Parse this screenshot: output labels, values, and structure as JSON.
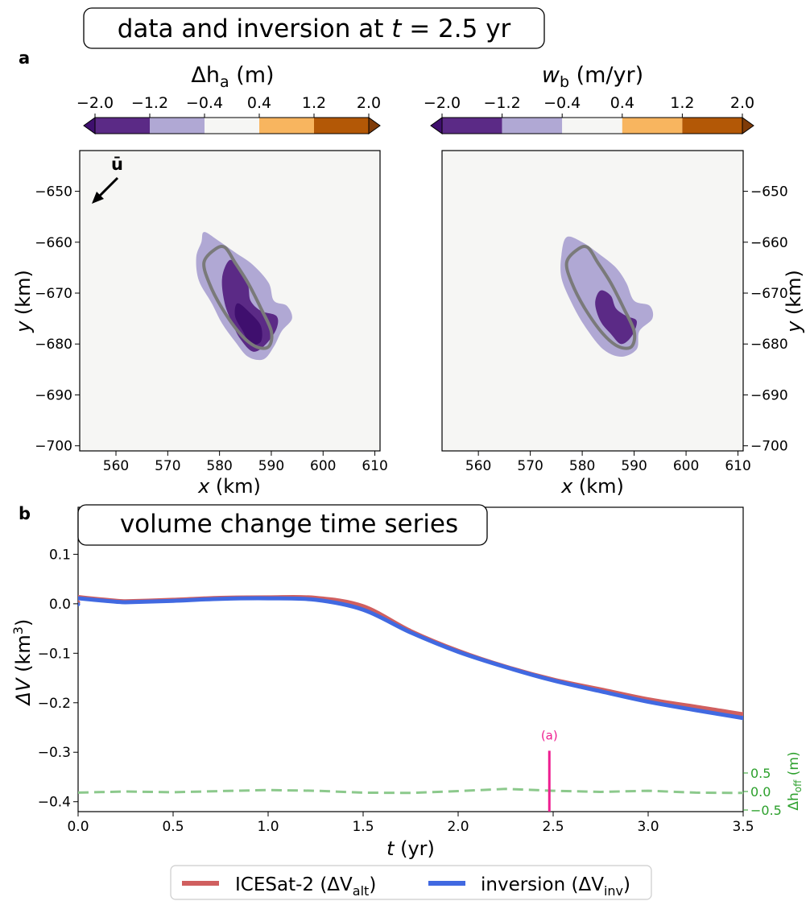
{
  "figure": {
    "title_a_prefix": "data and inversion at ",
    "title_a_t": "t",
    "title_a_suffix": " = 2.5 yr",
    "panel_a_label": "a",
    "panel_b_label": "b",
    "title_b": "volume change time series",
    "arrow_label": "ū"
  },
  "chart_data": [
    {
      "type": "heatmap",
      "panel": "a-left",
      "colorbar": {
        "label_sym": "Δh",
        "label_sub": "a",
        "label_unit": " (m)",
        "ticks": [
          "−2.0",
          "−1.2",
          "−0.4",
          "0.4",
          "1.2",
          "2.0"
        ],
        "levels": [
          -2.0,
          -1.2,
          -0.4,
          0.4,
          1.2,
          2.0
        ],
        "colors": [
          "#5b2a86",
          "#b0a8d4",
          "#f6f6f4",
          "#f8b55f",
          "#b35806"
        ],
        "under_color": "#3f0f6e",
        "over_color": "#7f3b08"
      },
      "xlabel_sym": "x",
      "xlabel_unit": " (km)",
      "ylabel_sym": "y",
      "ylabel_unit": " (km)",
      "xlim": [
        553,
        611
      ],
      "ylim": [
        -701,
        -642
      ],
      "xticks": [
        560,
        570,
        580,
        590,
        600,
        610
      ],
      "yticks": [
        -650,
        -660,
        -670,
        -680,
        -690,
        -700
      ],
      "xtick_labels": [
        "560",
        "570",
        "580",
        "590",
        "600",
        "610"
      ],
      "ytick_labels": [
        "−650",
        "−660",
        "−670",
        "−680",
        "−690",
        "−700"
      ],
      "contours": [
        {
          "level": "−1.2 to −0.4",
          "color": "#b0a8d4",
          "points": [
            [
              577.0,
              -658.0
            ],
            [
              579.5,
              -659.5
            ],
            [
              583.0,
              -662.0
            ],
            [
              586.5,
              -664.5
            ],
            [
              589.5,
              -668.0
            ],
            [
              590.5,
              -671.5
            ],
            [
              593.0,
              -672.5
            ],
            [
              594.0,
              -675.0
            ],
            [
              592.0,
              -677.5
            ],
            [
              590.5,
              -680.5
            ],
            [
              588.5,
              -683.0
            ],
            [
              585.5,
              -682.5
            ],
            [
              583.0,
              -679.5
            ],
            [
              580.5,
              -676.0
            ],
            [
              578.5,
              -672.0
            ],
            [
              576.0,
              -667.5
            ],
            [
              575.5,
              -663.0
            ],
            [
              576.5,
              -660.0
            ]
          ]
        },
        {
          "level": "−2.0 to −1.2",
          "color": "#5b2a86",
          "points": [
            [
              582.0,
              -663.5
            ],
            [
              584.0,
              -665.5
            ],
            [
              585.5,
              -668.5
            ],
            [
              586.0,
              -671.5
            ],
            [
              588.0,
              -673.5
            ],
            [
              591.0,
              -674.5
            ],
            [
              591.0,
              -677.0
            ],
            [
              589.0,
              -680.0
            ],
            [
              586.5,
              -681.5
            ],
            [
              584.0,
              -679.0
            ],
            [
              582.5,
              -676.0
            ],
            [
              581.0,
              -672.0
            ],
            [
              580.5,
              -667.0
            ]
          ]
        },
        {
          "level": "below −2.0",
          "color": "#3f0f6e",
          "points": [
            [
              583.5,
              -672.0
            ],
            [
              586.0,
              -674.0
            ],
            [
              588.0,
              -676.5
            ],
            [
              588.0,
              -679.5
            ],
            [
              586.0,
              -680.0
            ],
            [
              584.5,
              -677.5
            ],
            [
              583.0,
              -674.5
            ]
          ]
        }
      ],
      "outline_color": "#7a7a7a",
      "outline": [
        [
          579.0,
          -661.5
        ],
        [
          581.0,
          -661.0
        ],
        [
          583.0,
          -664.0
        ],
        [
          585.5,
          -668.0
        ],
        [
          588.0,
          -673.0
        ],
        [
          590.0,
          -677.5
        ],
        [
          589.5,
          -680.5
        ],
        [
          587.0,
          -680.5
        ],
        [
          584.0,
          -678.0
        ],
        [
          580.5,
          -673.0
        ],
        [
          578.0,
          -668.0
        ],
        [
          577.0,
          -664.0
        ]
      ]
    },
    {
      "type": "heatmap",
      "panel": "a-right",
      "colorbar": {
        "label_sym": "w",
        "label_sub": "b",
        "label_unit": " (m/yr)",
        "ticks": [
          "−2.0",
          "−1.2",
          "−0.4",
          "0.4",
          "1.2",
          "2.0"
        ],
        "levels": [
          -2.0,
          -1.2,
          -0.4,
          0.4,
          1.2,
          2.0
        ],
        "colors": [
          "#5b2a86",
          "#b0a8d4",
          "#f6f6f4",
          "#f8b55f",
          "#b35806"
        ],
        "under_color": "#3f0f6e",
        "over_color": "#7f3b08"
      },
      "xlabel_sym": "x",
      "xlabel_unit": " (km)",
      "ylabel_sym": "y",
      "ylabel_unit": " (km)",
      "xlim": [
        553,
        611
      ],
      "ylim": [
        -701,
        -642
      ],
      "xticks": [
        560,
        570,
        580,
        590,
        600,
        610
      ],
      "yticks": [
        -650,
        -660,
        -670,
        -680,
        -690,
        -700
      ],
      "xtick_labels": [
        "560",
        "570",
        "580",
        "590",
        "600",
        "610"
      ],
      "ytick_labels": [
        "−650",
        "−660",
        "−670",
        "−680",
        "−690",
        "−700"
      ],
      "contours": [
        {
          "level": "−1.2 to −0.4",
          "color": "#b0a8d4",
          "points": [
            [
              577.0,
              -659.0
            ],
            [
              580.0,
              -660.0
            ],
            [
              583.5,
              -662.5
            ],
            [
              586.5,
              -665.0
            ],
            [
              588.5,
              -668.0
            ],
            [
              590.0,
              -671.5
            ],
            [
              593.0,
              -672.5
            ],
            [
              593.5,
              -675.0
            ],
            [
              591.0,
              -677.5
            ],
            [
              590.5,
              -681.0
            ],
            [
              587.5,
              -682.5
            ],
            [
              584.0,
              -681.0
            ],
            [
              580.5,
              -676.5
            ],
            [
              578.0,
              -672.0
            ],
            [
              576.0,
              -667.0
            ],
            [
              576.0,
              -662.5
            ]
          ]
        },
        {
          "level": "−2.0 to −1.2",
          "color": "#5b2a86",
          "points": [
            [
              583.5,
              -669.5
            ],
            [
              585.5,
              -670.5
            ],
            [
              586.5,
              -673.0
            ],
            [
              588.5,
              -674.5
            ],
            [
              590.5,
              -675.5
            ],
            [
              589.5,
              -678.5
            ],
            [
              587.5,
              -680.0
            ],
            [
              585.5,
              -678.0
            ],
            [
              583.5,
              -675.5
            ],
            [
              582.5,
              -672.0
            ]
          ]
        }
      ],
      "outline_color": "#7a7a7a",
      "outline": [
        [
          579.0,
          -661.5
        ],
        [
          581.0,
          -661.0
        ],
        [
          583.0,
          -664.0
        ],
        [
          585.5,
          -668.0
        ],
        [
          588.0,
          -673.0
        ],
        [
          590.0,
          -677.5
        ],
        [
          589.5,
          -680.5
        ],
        [
          587.0,
          -680.5
        ],
        [
          584.0,
          -678.0
        ],
        [
          580.5,
          -673.0
        ],
        [
          578.0,
          -668.0
        ],
        [
          577.0,
          -664.0
        ]
      ]
    },
    {
      "type": "line",
      "panel": "b",
      "xlabel_sym": "t",
      "xlabel_unit": " (yr)",
      "ylabel_sym": "ΔV",
      "ylabel_unit_open": " (km",
      "ylabel_unit_sup": "3",
      "ylabel_unit_close": ")",
      "xlim": [
        0,
        3.5
      ],
      "ylim": [
        -0.42,
        0.195
      ],
      "xticks": [
        0.0,
        0.5,
        1.0,
        1.5,
        2.0,
        2.5,
        3.0,
        3.5
      ],
      "xtick_labels": [
        "0.0",
        "0.5",
        "1.0",
        "1.5",
        "2.0",
        "2.5",
        "3.0",
        "3.5"
      ],
      "yticks": [
        0.1,
        0.0,
        -0.1,
        -0.2,
        -0.3,
        -0.4
      ],
      "ytick_labels": [
        "0.1",
        "0.0",
        "−0.1",
        "−0.2",
        "−0.3",
        "−0.4"
      ],
      "x": [
        0.0,
        0.25,
        0.5,
        0.75,
        1.0,
        1.25,
        1.5,
        1.75,
        2.0,
        2.25,
        2.5,
        2.75,
        3.0,
        3.25,
        3.5
      ],
      "series": [
        {
          "name_pre": "ICESat-2 (ΔV",
          "name_sub": "alt",
          "name_post": ")",
          "color": "#d05f5f",
          "values": [
            0.003,
            0.005,
            0.008,
            0.012,
            0.013,
            0.012,
            -0.005,
            -0.055,
            -0.095,
            -0.127,
            -0.153,
            -0.173,
            -0.193,
            -0.208,
            -0.222
          ]
        },
        {
          "name_pre": "inversion (ΔV",
          "name_sub": "inv",
          "name_post": ")",
          "color": "#4169e1",
          "values": [
            -0.001,
            0.003,
            0.006,
            0.01,
            0.011,
            0.008,
            -0.012,
            -0.058,
            -0.097,
            -0.128,
            -0.155,
            -0.177,
            -0.198,
            -0.215,
            -0.23
          ]
        }
      ],
      "offset_axis": {
        "label_sym": "Δh",
        "label_sub": "off",
        "label_unit": " (m)",
        "color": "#2ca02c",
        "ticks": [
          0.5,
          0.0,
          -0.5
        ],
        "tick_labels": [
          "0.5",
          "0.0",
          "−0.5"
        ],
        "ylim": [
          -0.5,
          0.5
        ],
        "x": [
          0.0,
          0.25,
          0.5,
          0.75,
          1.0,
          1.25,
          1.5,
          1.75,
          2.0,
          2.25,
          2.5,
          2.75,
          3.0,
          3.25,
          3.5
        ],
        "values": [
          -0.03,
          0.0,
          -0.02,
          0.01,
          0.04,
          0.02,
          -0.03,
          -0.04,
          0.01,
          0.07,
          0.02,
          -0.01,
          0.02,
          -0.03,
          -0.04
        ],
        "series_color": "#8cc98c"
      },
      "marker": {
        "x": 2.48,
        "y_top": -0.297,
        "label": "(a)",
        "color": "#ee1f91"
      }
    }
  ]
}
